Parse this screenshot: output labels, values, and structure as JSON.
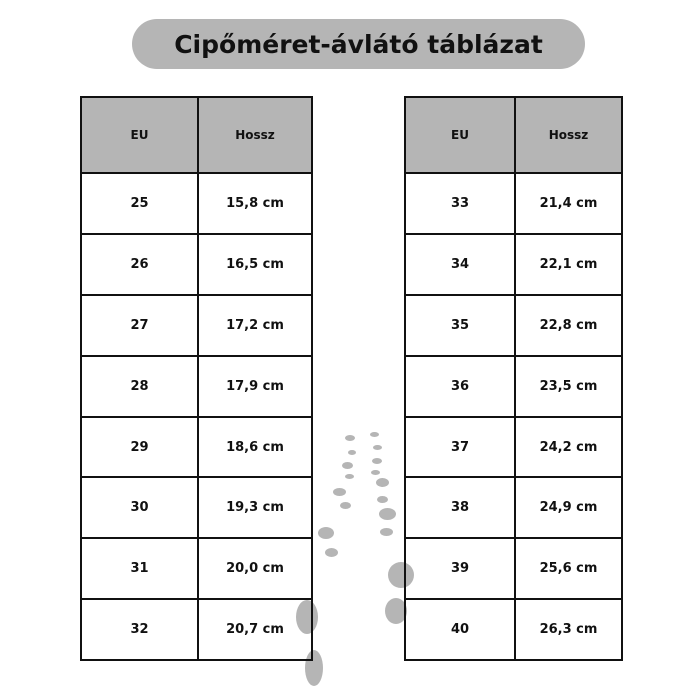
{
  "title": "Cipőméret-ávlátó táblázat",
  "tables": [
    {
      "headers": [
        "EU",
        "Hossz"
      ],
      "rows": [
        [
          "25",
          "15,8 cm"
        ],
        [
          "26",
          "16,5 cm"
        ],
        [
          "27",
          "17,2 cm"
        ],
        [
          "28",
          "17,9 cm"
        ],
        [
          "29",
          "18,6 cm"
        ],
        [
          "30",
          "19,3 cm"
        ],
        [
          "31",
          "20,0 cm"
        ],
        [
          "32",
          "20,7 cm"
        ]
      ]
    },
    {
      "headers": [
        "EU",
        "Hossz"
      ],
      "rows": [
        [
          "33",
          "21,4 cm"
        ],
        [
          "34",
          "22,1 cm"
        ],
        [
          "35",
          "22,8 cm"
        ],
        [
          "36",
          "23,5 cm"
        ],
        [
          "37",
          "24,2 cm"
        ],
        [
          "38",
          "24,9 cm"
        ],
        [
          "39",
          "25,6 cm"
        ],
        [
          "40",
          "26,3 cm"
        ]
      ]
    }
  ],
  "colors": {
    "header_bg": "#b5b5b5",
    "title_bg": "#b5b5b5",
    "border": "#111111"
  },
  "decoration": "footprints-icon"
}
